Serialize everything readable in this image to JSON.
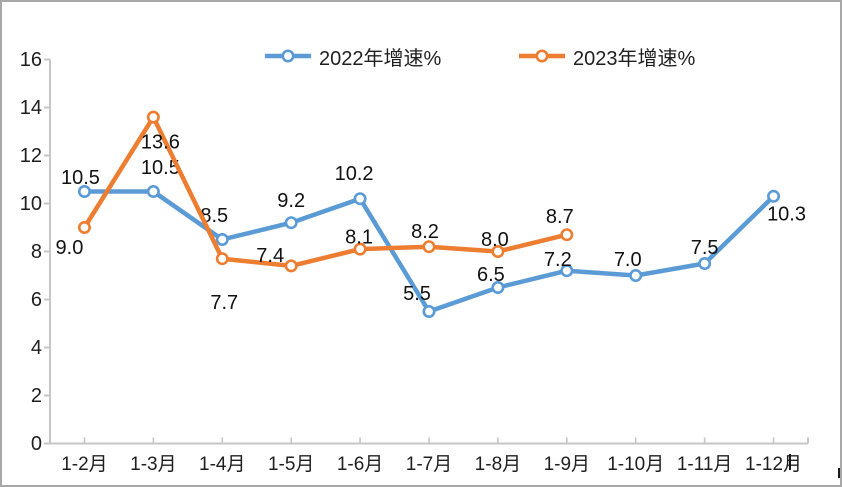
{
  "window": {
    "background": "#ffffff",
    "border_color": "#a8a8a8"
  },
  "chart_data": {
    "type": "line",
    "title": "",
    "categories": [
      "1-2月",
      "1-3月",
      "1-4月",
      "1-5月",
      "1-6月",
      "1-7月",
      "1-8月",
      "1-9月",
      "1-10月",
      "1-11月",
      "1-12月"
    ],
    "series": [
      {
        "name": "2022年增速%",
        "color": "#5B9BD5",
        "values": [
          10.5,
          10.5,
          8.5,
          9.2,
          10.2,
          5.5,
          6.5,
          7.2,
          7.0,
          7.5,
          10.3
        ],
        "label_offsets": [
          [
            -4,
            -13
          ],
          [
            7,
            -23
          ],
          [
            -8,
            -23
          ],
          [
            0,
            -21
          ],
          [
            -6,
            -24
          ],
          [
            -12,
            -17
          ],
          [
            -7,
            -12
          ],
          [
            -9,
            -10
          ],
          [
            -8,
            -15
          ],
          [
            0,
            -15
          ],
          [
            13,
            19
          ]
        ]
      },
      {
        "name": "2023年增速%",
        "color": "#ED7D31",
        "values": [
          9.0,
          13.6,
          7.7,
          7.4,
          8.1,
          8.2,
          8.0,
          8.7
        ],
        "label_offsets": [
          [
            -15,
            21
          ],
          [
            7,
            26
          ],
          [
            2,
            45
          ],
          [
            -21,
            -9
          ],
          [
            -1,
            -11
          ],
          [
            -4,
            -14
          ],
          [
            -3,
            -11
          ],
          [
            -7,
            -17
          ]
        ]
      }
    ],
    "ylim": [
      0,
      16
    ],
    "ytick_step": 2,
    "yticks": [
      0,
      2,
      4,
      6,
      8,
      10,
      12,
      14,
      16
    ],
    "grid": false,
    "legend_position": "top",
    "marker": "open-circle",
    "axis_color": "#c6c6c6",
    "text_color": "#1f1f1f",
    "data_label_color": "#111111",
    "data_label_format": "0.0"
  }
}
